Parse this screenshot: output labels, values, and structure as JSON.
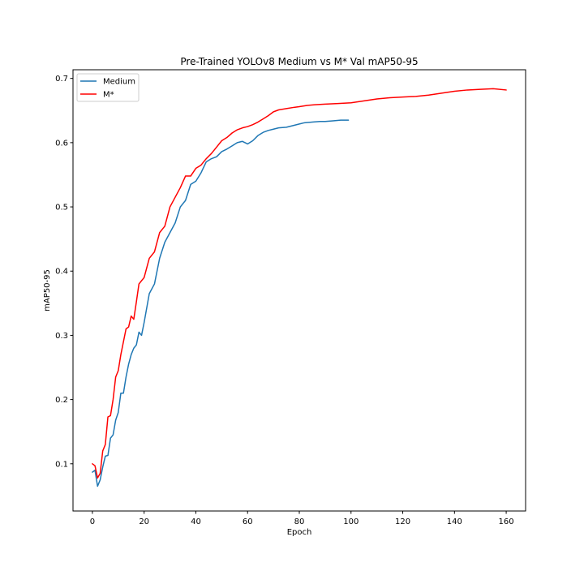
{
  "chart_data": {
    "type": "line",
    "title": "Pre-Trained YOLOv8 Medium vs M* Val mAP50-95",
    "xlabel": "Epoch",
    "ylabel": "mAP50-95",
    "xlim": [
      -7.5,
      167.5
    ],
    "ylim": [
      0.0265,
      0.7135
    ],
    "xticks": [
      0,
      20,
      40,
      60,
      80,
      100,
      120,
      140,
      160
    ],
    "yticks": [
      0.1,
      0.2,
      0.3,
      0.4,
      0.5,
      0.6,
      0.7
    ],
    "xtick_labels": [
      "0",
      "20",
      "40",
      "60",
      "80",
      "100",
      "120",
      "140",
      "160"
    ],
    "ytick_labels": [
      "0.1",
      "0.2",
      "0.3",
      "0.4",
      "0.5",
      "0.6",
      "0.7"
    ],
    "grid": false,
    "legend": "top-left",
    "series": [
      {
        "name": "Medium",
        "color": "#1f77b4",
        "x": [
          0,
          1,
          2,
          3,
          4,
          5,
          6,
          7,
          8,
          9,
          10,
          11,
          12,
          13,
          14,
          15,
          16,
          17,
          18,
          19,
          20,
          22,
          24,
          26,
          28,
          30,
          32,
          34,
          36,
          38,
          40,
          42,
          44,
          46,
          48,
          50,
          52,
          54,
          56,
          58,
          60,
          62,
          64,
          66,
          68,
          70,
          72,
          75,
          78,
          80,
          82,
          85,
          88,
          90,
          93,
          96,
          99
        ],
        "values": [
          0.087,
          0.09,
          0.065,
          0.075,
          0.095,
          0.112,
          0.113,
          0.14,
          0.145,
          0.168,
          0.18,
          0.21,
          0.21,
          0.235,
          0.255,
          0.27,
          0.28,
          0.285,
          0.305,
          0.3,
          0.32,
          0.365,
          0.38,
          0.42,
          0.445,
          0.46,
          0.475,
          0.5,
          0.51,
          0.535,
          0.54,
          0.553,
          0.57,
          0.575,
          0.578,
          0.586,
          0.59,
          0.595,
          0.6,
          0.602,
          0.598,
          0.603,
          0.611,
          0.616,
          0.619,
          0.621,
          0.623,
          0.624,
          0.627,
          0.629,
          0.631,
          0.632,
          0.633,
          0.633,
          0.634,
          0.635,
          0.635
        ]
      },
      {
        "name": "M*",
        "color": "#ff0000",
        "x": [
          0,
          1,
          2,
          3,
          4,
          5,
          6,
          7,
          8,
          9,
          10,
          11,
          12,
          13,
          14,
          15,
          16,
          17,
          18,
          19,
          20,
          22,
          24,
          26,
          28,
          30,
          32,
          34,
          36,
          38,
          40,
          42,
          44,
          46,
          48,
          50,
          52,
          54,
          56,
          58,
          60,
          62,
          64,
          66,
          68,
          70,
          72,
          75,
          78,
          80,
          83,
          86,
          90,
          95,
          100,
          105,
          110,
          115,
          120,
          125,
          130,
          135,
          140,
          145,
          150,
          155,
          160
        ],
        "values": [
          0.1,
          0.097,
          0.078,
          0.085,
          0.12,
          0.13,
          0.173,
          0.175,
          0.2,
          0.235,
          0.245,
          0.27,
          0.29,
          0.31,
          0.313,
          0.33,
          0.325,
          0.352,
          0.38,
          0.385,
          0.39,
          0.42,
          0.43,
          0.46,
          0.47,
          0.5,
          0.515,
          0.53,
          0.548,
          0.548,
          0.56,
          0.565,
          0.575,
          0.583,
          0.593,
          0.603,
          0.608,
          0.615,
          0.62,
          0.623,
          0.625,
          0.628,
          0.632,
          0.637,
          0.642,
          0.648,
          0.651,
          0.653,
          0.655,
          0.656,
          0.658,
          0.659,
          0.66,
          0.661,
          0.662,
          0.665,
          0.668,
          0.67,
          0.671,
          0.672,
          0.674,
          0.677,
          0.68,
          0.682,
          0.683,
          0.684,
          0.682
        ]
      }
    ]
  }
}
